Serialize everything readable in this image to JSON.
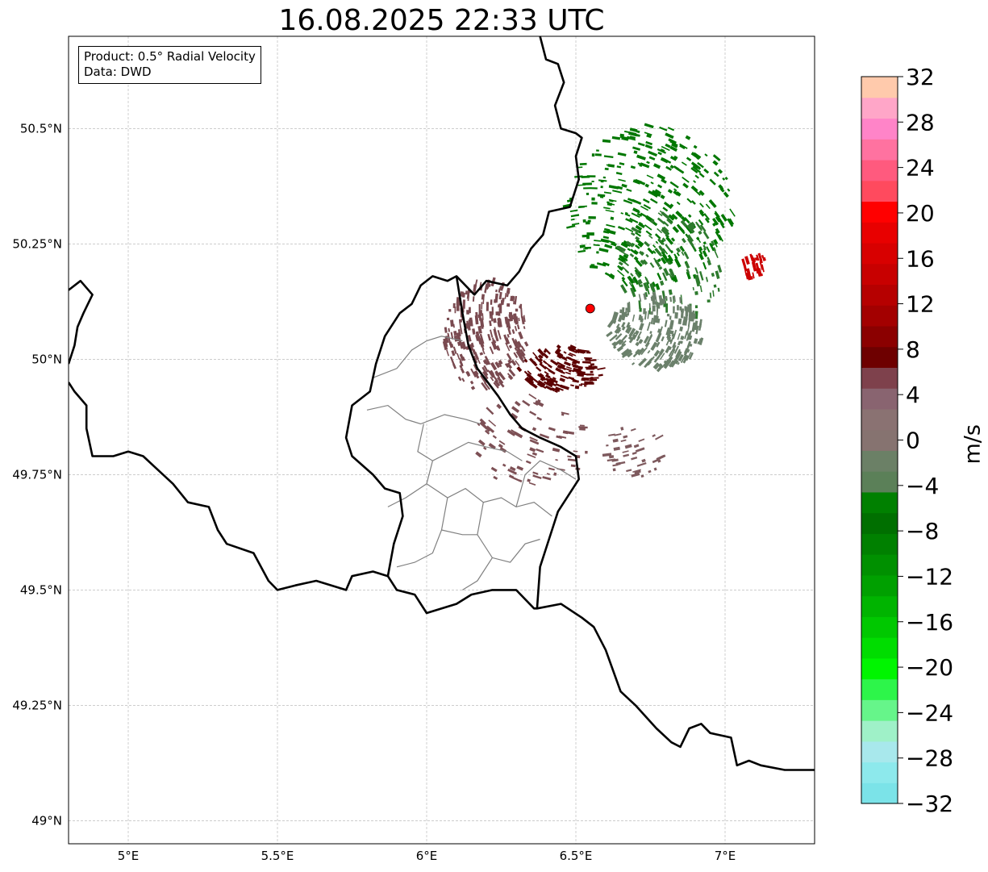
{
  "title": "16.08.2025 22:33 UTC",
  "info": {
    "product": "Product: 0.5° Radial Velocity",
    "data": "Data: DWD"
  },
  "map": {
    "lon_range": [
      4.8,
      7.3
    ],
    "lat_range": [
      48.95,
      50.7
    ],
    "lon_ticks": [
      {
        "value": 5.0,
        "label": "5°E"
      },
      {
        "value": 5.5,
        "label": "5.5°E"
      },
      {
        "value": 6.0,
        "label": "6°E"
      },
      {
        "value": 6.5,
        "label": "6.5°E"
      },
      {
        "value": 7.0,
        "label": "7°E"
      }
    ],
    "lat_ticks": [
      {
        "value": 49.0,
        "label": "49°N"
      },
      {
        "value": 49.25,
        "label": "49.25°N"
      },
      {
        "value": 49.5,
        "label": "49.5°N"
      },
      {
        "value": 49.75,
        "label": "49.75°N"
      },
      {
        "value": 50.0,
        "label": "50°N"
      },
      {
        "value": 50.25,
        "label": "50.25°N"
      },
      {
        "value": 50.5,
        "label": "50.5°N"
      }
    ],
    "gridlines": true,
    "radar_site": {
      "lon": 6.548,
      "lat": 50.11,
      "color": "#ff0000"
    },
    "country_border": [
      [
        6.38,
        50.7
      ],
      [
        6.4,
        50.65
      ],
      [
        6.44,
        50.64
      ],
      [
        6.46,
        50.6
      ],
      [
        6.43,
        50.55
      ],
      [
        6.45,
        50.5
      ],
      [
        6.5,
        50.49
      ],
      [
        6.52,
        50.48
      ],
      [
        6.5,
        50.44
      ],
      [
        6.51,
        50.39
      ],
      [
        6.48,
        50.33
      ],
      [
        6.41,
        50.32
      ],
      [
        6.39,
        50.27
      ],
      [
        6.35,
        50.24
      ],
      [
        6.31,
        50.19
      ],
      [
        6.27,
        50.16
      ],
      [
        6.2,
        50.17
      ],
      [
        6.16,
        50.14
      ],
      [
        6.1,
        50.18
      ],
      [
        6.07,
        50.17
      ],
      [
        6.02,
        50.18
      ],
      [
        5.98,
        50.16
      ],
      [
        5.95,
        50.12
      ],
      [
        5.91,
        50.1
      ],
      [
        5.86,
        50.05
      ],
      [
        5.83,
        49.99
      ],
      [
        5.81,
        49.93
      ],
      [
        5.75,
        49.9
      ],
      [
        5.73,
        49.83
      ],
      [
        5.75,
        49.79
      ],
      [
        5.82,
        49.75
      ],
      [
        5.86,
        49.72
      ],
      [
        5.91,
        49.71
      ],
      [
        5.92,
        49.66
      ],
      [
        5.89,
        49.6
      ],
      [
        5.87,
        49.53
      ],
      [
        5.82,
        49.54
      ],
      [
        5.75,
        49.53
      ],
      [
        5.73,
        49.5
      ],
      [
        5.63,
        49.52
      ],
      [
        5.56,
        49.51
      ],
      [
        5.5,
        49.5
      ],
      [
        5.47,
        49.52
      ],
      [
        5.42,
        49.58
      ],
      [
        5.33,
        49.6
      ],
      [
        5.3,
        49.63
      ],
      [
        5.27,
        49.68
      ],
      [
        5.2,
        49.69
      ],
      [
        5.15,
        49.73
      ],
      [
        5.1,
        49.76
      ],
      [
        5.05,
        49.79
      ],
      [
        5.0,
        49.8
      ],
      [
        4.95,
        49.79
      ],
      [
        4.88,
        49.79
      ],
      [
        4.86,
        49.85
      ],
      [
        4.86,
        49.9
      ],
      [
        4.82,
        49.93
      ],
      [
        4.8,
        49.95
      ]
    ],
    "border_east": [
      [
        6.1,
        50.18
      ],
      [
        6.12,
        50.1
      ],
      [
        6.14,
        50.03
      ],
      [
        6.17,
        49.98
      ],
      [
        6.24,
        49.92
      ],
      [
        6.28,
        49.88
      ],
      [
        6.32,
        49.85
      ],
      [
        6.38,
        49.83
      ],
      [
        6.45,
        49.81
      ],
      [
        6.5,
        49.79
      ],
      [
        6.51,
        49.74
      ],
      [
        6.44,
        49.67
      ],
      [
        6.41,
        49.61
      ],
      [
        6.38,
        49.55
      ],
      [
        6.37,
        49.46
      ],
      [
        6.36,
        49.46
      ],
      [
        6.3,
        49.5
      ],
      [
        6.22,
        49.5
      ],
      [
        6.15,
        49.49
      ],
      [
        6.1,
        49.47
      ],
      [
        6.0,
        49.45
      ],
      [
        5.96,
        49.49
      ],
      [
        5.9,
        49.5
      ],
      [
        5.87,
        49.53
      ]
    ],
    "border_se": [
      [
        6.37,
        49.46
      ],
      [
        6.45,
        49.47
      ],
      [
        6.52,
        49.44
      ],
      [
        6.56,
        49.42
      ],
      [
        6.6,
        49.37
      ],
      [
        6.65,
        49.28
      ],
      [
        6.7,
        49.25
      ],
      [
        6.77,
        49.2
      ],
      [
        6.82,
        49.17
      ],
      [
        6.85,
        49.16
      ],
      [
        6.88,
        49.2
      ],
      [
        6.92,
        49.21
      ],
      [
        6.95,
        49.19
      ],
      [
        7.02,
        49.18
      ],
      [
        7.04,
        49.12
      ],
      [
        7.08,
        49.13
      ],
      [
        7.12,
        49.12
      ],
      [
        7.2,
        49.11
      ],
      [
        7.3,
        49.11
      ]
    ],
    "border_west_top": [
      [
        4.8,
        50.15
      ],
      [
        4.84,
        50.17
      ],
      [
        4.88,
        50.14
      ],
      [
        4.85,
        50.1
      ],
      [
        4.83,
        50.07
      ],
      [
        4.82,
        50.03
      ],
      [
        4.8,
        49.99
      ]
    ],
    "cantons": [
      [
        [
          5.82,
          49.96
        ],
        [
          5.9,
          49.98
        ],
        [
          5.95,
          50.02
        ],
        [
          6.0,
          50.04
        ],
        [
          6.05,
          50.05
        ],
        [
          6.12,
          50.04
        ]
      ],
      [
        [
          5.8,
          49.89
        ],
        [
          5.87,
          49.9
        ],
        [
          5.93,
          49.87
        ],
        [
          5.98,
          49.86
        ],
        [
          6.02,
          49.87
        ],
        [
          6.06,
          49.88
        ],
        [
          6.13,
          49.87
        ],
        [
          6.18,
          49.86
        ]
      ],
      [
        [
          5.99,
          49.86
        ],
        [
          5.97,
          49.8
        ],
        [
          6.02,
          49.78
        ],
        [
          6.08,
          49.8
        ],
        [
          6.14,
          49.82
        ],
        [
          6.2,
          49.81
        ],
        [
          6.27,
          49.8
        ],
        [
          6.32,
          49.78
        ]
      ],
      [
        [
          6.02,
          49.78
        ],
        [
          6.0,
          49.73
        ],
        [
          5.93,
          49.7
        ],
        [
          5.87,
          49.68
        ]
      ],
      [
        [
          6.0,
          49.73
        ],
        [
          6.07,
          49.7
        ],
        [
          6.13,
          49.72
        ],
        [
          6.19,
          49.69
        ],
        [
          6.25,
          49.7
        ],
        [
          6.3,
          49.68
        ],
        [
          6.36,
          49.69
        ],
        [
          6.42,
          49.66
        ]
      ],
      [
        [
          6.19,
          49.69
        ],
        [
          6.17,
          49.62
        ],
        [
          6.22,
          49.57
        ],
        [
          6.28,
          49.56
        ],
        [
          6.33,
          49.6
        ],
        [
          6.38,
          49.61
        ]
      ],
      [
        [
          6.07,
          49.7
        ],
        [
          6.05,
          49.63
        ],
        [
          6.02,
          49.58
        ],
        [
          5.96,
          49.56
        ],
        [
          5.9,
          49.55
        ]
      ],
      [
        [
          6.3,
          49.68
        ],
        [
          6.33,
          49.75
        ],
        [
          6.38,
          49.78
        ],
        [
          6.45,
          49.76
        ],
        [
          6.5,
          49.74
        ]
      ],
      [
        [
          6.05,
          49.63
        ],
        [
          6.12,
          49.62
        ],
        [
          6.17,
          49.62
        ]
      ],
      [
        [
          6.22,
          49.57
        ],
        [
          6.17,
          49.52
        ],
        [
          6.12,
          49.5
        ]
      ]
    ]
  },
  "colorbar": {
    "min": -32,
    "max": 32,
    "step": 2,
    "colors": [
      "#7be3e8",
      "#8de9ec",
      "#a8e8ec",
      "#9ff1c8",
      "#66f58a",
      "#2df54a",
      "#00f500",
      "#00dd00",
      "#00c800",
      "#00b400",
      "#00a000",
      "#009000",
      "#008000",
      "#006f00",
      "#008000",
      "#5b8058",
      "#6b8066",
      "#867370",
      "#8a7272",
      "#896470",
      "#7e414c",
      "#6e0000",
      "#8b0000",
      "#a30000",
      "#b60000",
      "#c80000",
      "#d80000",
      "#e80000",
      "#ff0000",
      "#ff4a5e",
      "#ff5a7e",
      "#ff72a0",
      "#ff84c8",
      "#ffa6c8",
      "#ffcaac"
    ],
    "tick_values": [
      -32,
      -28,
      -24,
      -20,
      -16,
      -12,
      -8,
      -4,
      0,
      4,
      8,
      12,
      16,
      20,
      24,
      28,
      32
    ],
    "tick_labels": [
      "−32",
      "−28",
      "−24",
      "−20",
      "−16",
      "−12",
      "−8",
      "−4",
      "0",
      "4",
      "8",
      "12",
      "16",
      "20",
      "24",
      "28",
      "32"
    ],
    "unit_label": "m/s"
  },
  "echo_groups": [
    {
      "color": "#007700",
      "center": [
        6.75,
        50.33
      ],
      "radius": [
        0.28,
        0.18
      ],
      "count": 360
    },
    {
      "color": "#2d7a2d",
      "center": [
        6.82,
        50.2
      ],
      "radius": [
        0.18,
        0.12
      ],
      "count": 120
    },
    {
      "color": "#6b806b",
      "center": [
        6.77,
        50.06
      ],
      "radius": [
        0.16,
        0.08
      ],
      "count": 220
    },
    {
      "color": "#7a4a50",
      "center": [
        6.2,
        50.05
      ],
      "radius": [
        0.14,
        0.12
      ],
      "count": 260
    },
    {
      "color": "#5c0000",
      "center": [
        6.45,
        49.98
      ],
      "radius": [
        0.14,
        0.05
      ],
      "count": 140
    },
    {
      "color": "#7d5055",
      "center": [
        6.35,
        49.82
      ],
      "radius": [
        0.2,
        0.1
      ],
      "count": 80
    },
    {
      "color": "#cc0000",
      "center": [
        7.1,
        50.2
      ],
      "radius": [
        0.04,
        0.03
      ],
      "count": 30
    },
    {
      "color": "#7e5a5e",
      "center": [
        6.7,
        49.8
      ],
      "radius": [
        0.1,
        0.06
      ],
      "count": 40
    }
  ]
}
